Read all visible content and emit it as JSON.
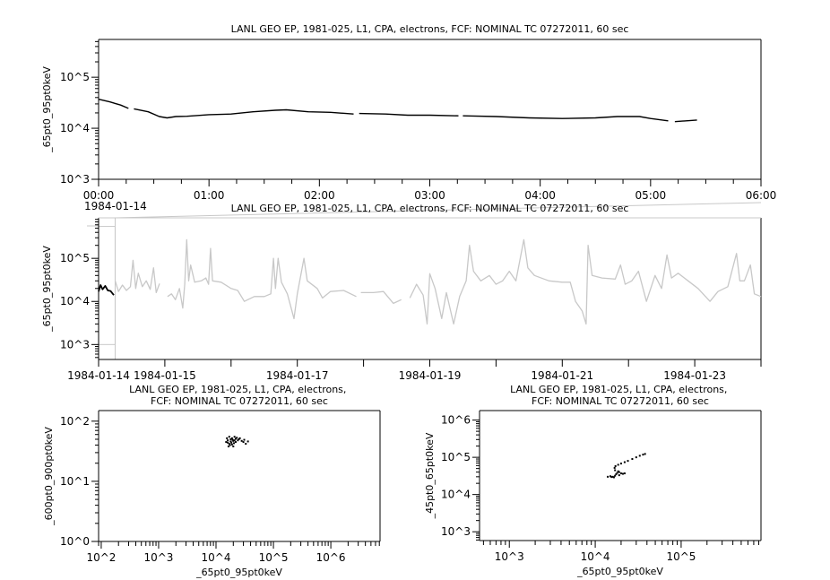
{
  "chart_data": [
    {
      "id": "top",
      "type": "line",
      "title": "LANL GEO EP, 1981-025, L1, CPA, electrons, FCF: NOMINAL TC 07272011, 60 sec",
      "xlabel": "",
      "ylabel": "_65pt0_95pt0keV",
      "x_unit": "hours since 1984-01-14 00:00",
      "xlim": [
        0,
        6
      ],
      "ylim": [
        1000,
        550000
      ],
      "yscale": "log",
      "x_ticks": [
        "00:00",
        "01:00",
        "02:00",
        "03:00",
        "04:00",
        "05:00",
        "06:00"
      ],
      "x_tick_date": "1984-01-14",
      "y_ticks": [
        "10^3",
        "10^4",
        "10^5"
      ],
      "series": [
        {
          "color": "#000000",
          "points": [
            [
              0,
              37000
            ],
            [
              0.1,
              33000
            ],
            [
              0.2,
              28500
            ],
            [
              0.27,
              24500
            ],
            null,
            [
              0.32,
              24000
            ],
            [
              0.45,
              21000
            ],
            [
              0.55,
              17000
            ],
            [
              0.62,
              16000
            ],
            [
              0.7,
              17000
            ],
            [
              0.8,
              17200
            ],
            [
              1.0,
              18500
            ],
            [
              1.2,
              19000
            ],
            [
              1.4,
              21000
            ],
            [
              1.6,
              22500
            ],
            [
              1.7,
              23000
            ],
            [
              1.9,
              21000
            ],
            [
              2.1,
              20500
            ],
            [
              2.31,
              19000
            ],
            null,
            [
              2.36,
              19500
            ],
            [
              2.6,
              19000
            ],
            [
              2.8,
              18000
            ],
            [
              3.0,
              18000
            ],
            [
              3.26,
              17500
            ],
            null,
            [
              3.3,
              17500
            ],
            [
              3.6,
              17000
            ],
            [
              3.9,
              16000
            ],
            [
              4.2,
              15500
            ],
            [
              4.5,
              16000
            ],
            [
              4.7,
              17000
            ],
            [
              4.9,
              17000
            ],
            [
              5.0,
              15500
            ],
            [
              5.16,
              14000
            ],
            null,
            [
              5.22,
              13500
            ],
            [
              5.42,
              14500
            ]
          ]
        }
      ]
    },
    {
      "id": "middle",
      "type": "line",
      "title": "LANL GEO EP, 1981-025, L1, CPA, electrons, FCF: NOMINAL TC 07272011, 60 sec",
      "xlabel": "",
      "ylabel": "_65pt0_95pt0keV",
      "x_unit": "days since 1984-01-14",
      "xlim": [
        0,
        10
      ],
      "ylim": [
        450,
        870000
      ],
      "yscale": "log",
      "x_tick_first_date": "1984-01-14",
      "x_ticks": [
        {
          "day": 1,
          "label": "1984-01-15"
        },
        {
          "day": 3,
          "label": "1984-01-17"
        },
        {
          "day": 5,
          "label": "1984-01-19"
        },
        {
          "day": 7,
          "label": "1984-01-21"
        },
        {
          "day": 9,
          "label": "1984-01-23"
        }
      ],
      "y_ticks": [
        "10^3",
        "10^4",
        "10^5"
      ],
      "zoom_box": {
        "x": [
          0,
          0.25
        ],
        "y": [
          1000,
          550000
        ],
        "color": "#c8c8c8"
      },
      "series": [
        {
          "color": "#000000",
          "points": [
            [
              0,
              17000
            ],
            [
              0.03,
              24000
            ],
            [
              0.06,
              19000
            ],
            [
              0.1,
              23000
            ],
            [
              0.14,
              18000
            ],
            [
              0.18,
              17500
            ],
            [
              0.23,
              14000
            ]
          ]
        },
        {
          "color": "#c8c8c8",
          "points": [
            [
              0.25,
              30000
            ],
            [
              0.3,
              17000
            ],
            [
              0.36,
              24000
            ],
            [
              0.42,
              18000
            ],
            [
              0.48,
              22000
            ],
            [
              0.52,
              90000
            ],
            [
              0.56,
              20000
            ],
            [
              0.6,
              45000
            ],
            [
              0.66,
              22000
            ],
            [
              0.72,
              30000
            ],
            [
              0.78,
              19000
            ],
            [
              0.83,
              60000
            ],
            [
              0.87,
              16000
            ],
            [
              0.92,
              26000
            ],
            null,
            [
              1.04,
              13000
            ],
            [
              1.1,
              15000
            ],
            [
              1.16,
              11000
            ],
            [
              1.22,
              20000
            ],
            [
              1.27,
              7000
            ],
            [
              1.3,
              25000
            ],
            [
              1.33,
              270000
            ],
            [
              1.36,
              30000
            ],
            [
              1.39,
              70000
            ],
            [
              1.45,
              28000
            ],
            [
              1.55,
              30000
            ],
            [
              1.62,
              35000
            ],
            [
              1.66,
              25000
            ],
            [
              1.69,
              170000
            ],
            [
              1.72,
              30000
            ],
            [
              1.85,
              28000
            ],
            [
              2.0,
              20000
            ],
            [
              2.1,
              18000
            ],
            [
              2.2,
              10000
            ],
            [
              2.35,
              13000
            ],
            [
              2.5,
              13000
            ],
            [
              2.6,
              15000
            ],
            [
              2.64,
              100000
            ],
            [
              2.67,
              20000
            ],
            [
              2.71,
              100000
            ],
            [
              2.76,
              28000
            ],
            [
              2.85,
              15000
            ],
            [
              2.95,
              4000
            ],
            [
              3.0,
              15000
            ],
            [
              3.1,
              100000
            ],
            [
              3.15,
              30000
            ],
            [
              3.3,
              20000
            ],
            [
              3.38,
              12000
            ],
            [
              3.5,
              17000
            ],
            [
              3.7,
              18000
            ],
            [
              3.89,
              13000
            ],
            null,
            [
              3.96,
              16000
            ],
            [
              4.15,
              16000
            ],
            [
              4.3,
              17000
            ],
            [
              4.45,
              9000
            ],
            [
              4.57,
              11000
            ],
            null,
            [
              4.7,
              12000
            ],
            [
              4.8,
              25000
            ],
            [
              4.9,
              14000
            ],
            [
              4.96,
              3000
            ],
            [
              5.0,
              44000
            ],
            [
              5.08,
              20000
            ],
            [
              5.18,
              4000
            ],
            [
              5.25,
              16000
            ],
            [
              5.36,
              3000
            ],
            [
              5.45,
              13000
            ],
            [
              5.55,
              30000
            ],
            [
              5.6,
              200000
            ],
            [
              5.66,
              50000
            ],
            [
              5.77,
              30000
            ],
            [
              5.9,
              40000
            ],
            [
              6.0,
              25000
            ],
            [
              6.1,
              30000
            ],
            [
              6.2,
              50000
            ],
            [
              6.3,
              30000
            ],
            [
              6.42,
              270000
            ],
            [
              6.48,
              60000
            ],
            [
              6.58,
              40000
            ],
            [
              6.8,
              30000
            ],
            [
              7.0,
              28000
            ],
            [
              7.12,
              28000
            ],
            [
              7.2,
              10000
            ],
            [
              7.3,
              6000
            ],
            [
              7.36,
              3000
            ],
            [
              7.39,
              200000
            ],
            [
              7.45,
              40000
            ],
            [
              7.6,
              35000
            ],
            [
              7.8,
              33000
            ],
            [
              7.88,
              70000
            ],
            [
              7.95,
              25000
            ],
            [
              8.05,
              30000
            ],
            [
              8.15,
              50000
            ],
            [
              8.27,
              10000
            ],
            [
              8.4,
              40000
            ],
            [
              8.5,
              20000
            ],
            [
              8.58,
              120000
            ],
            [
              8.65,
              35000
            ],
            [
              8.75,
              45000
            ],
            [
              8.9,
              30000
            ],
            [
              9.05,
              20000
            ],
            [
              9.23,
              10000
            ],
            [
              9.35,
              17000
            ],
            [
              9.5,
              22000
            ],
            [
              9.63,
              130000
            ],
            [
              9.68,
              30000
            ],
            [
              9.75,
              30000
            ],
            [
              9.84,
              70000
            ],
            [
              9.9,
              15000
            ],
            [
              10,
              13000
            ]
          ]
        }
      ]
    },
    {
      "id": "bottom-left",
      "type": "scatter",
      "title": "LANL GEO EP, 1981-025, L1, CPA, electrons, FCF: NOMINAL TC 07272011, 60 sec",
      "xlabel": "_65pt0_95pt0keV",
      "ylabel": "_600pt0_900pt0keV",
      "xscale": "log",
      "yscale": "log",
      "xlim": [
        90,
        7200000
      ],
      "ylim": [
        1,
        150
      ],
      "x_ticks": [
        "10^2",
        "10^3",
        "10^4",
        "10^5",
        "10^6"
      ],
      "y_ticks": [
        "10^0",
        "10^1",
        "10^2"
      ],
      "points": [
        [
          15000,
          45
        ],
        [
          16000,
          48
        ],
        [
          17000,
          42
        ],
        [
          18000,
          50
        ],
        [
          19000,
          52
        ],
        [
          20000,
          47
        ],
        [
          21000,
          55
        ],
        [
          17500,
          40
        ],
        [
          16500,
          38
        ],
        [
          18500,
          44
        ],
        [
          19500,
          49
        ],
        [
          22000,
          51
        ],
        [
          15500,
          52
        ],
        [
          20500,
          43
        ],
        [
          17000,
          55
        ],
        [
          18000,
          46
        ],
        [
          16000,
          44
        ],
        [
          19000,
          41
        ],
        [
          21000,
          48
        ],
        [
          23000,
          53
        ],
        [
          25000,
          50
        ],
        [
          28000,
          47
        ],
        [
          30000,
          45
        ],
        [
          33000,
          42
        ],
        [
          36000,
          46
        ],
        [
          26000,
          52
        ],
        [
          31000,
          49
        ],
        [
          20000,
          38
        ],
        [
          22000,
          45
        ],
        [
          24000,
          48
        ]
      ]
    },
    {
      "id": "bottom-right",
      "type": "scatter",
      "title": "LANL GEO EP, 1981-025, L1, CPA, electrons, FCF: NOMINAL TC 07272011, 60 sec",
      "xlabel": "_65pt0_95pt0keV",
      "ylabel": "_45pt0_65pt0keV",
      "xscale": "log",
      "yscale": "log",
      "xlim": [
        450,
        850000
      ],
      "ylim": [
        580,
        1800000
      ],
      "x_ticks": [
        "10^3",
        "10^4",
        "10^5"
      ],
      "y_ticks": [
        "10^3",
        "10^4",
        "10^5",
        "10^6"
      ],
      "points": [
        [
          14000,
          30000
        ],
        [
          15000,
          31000
        ],
        [
          16000,
          30000
        ],
        [
          17000,
          32000
        ],
        [
          17500,
          35000
        ],
        [
          18000,
          38000
        ],
        [
          18500,
          42000
        ],
        [
          19000,
          40000
        ],
        [
          20000,
          37000
        ],
        [
          21000,
          36000
        ],
        [
          22000,
          37000
        ],
        [
          16500,
          29000
        ],
        [
          17000,
          45000
        ],
        [
          16800,
          52000
        ],
        [
          17200,
          58000
        ],
        [
          18500,
          63000
        ],
        [
          20000,
          68000
        ],
        [
          22000,
          74000
        ],
        [
          24000,
          80000
        ],
        [
          27000,
          90000
        ],
        [
          30000,
          100000
        ],
        [
          33000,
          110000
        ],
        [
          36000,
          118000
        ],
        [
          38000,
          123000
        ],
        [
          19000,
          33000
        ],
        [
          15500,
          29500
        ]
      ]
    }
  ]
}
